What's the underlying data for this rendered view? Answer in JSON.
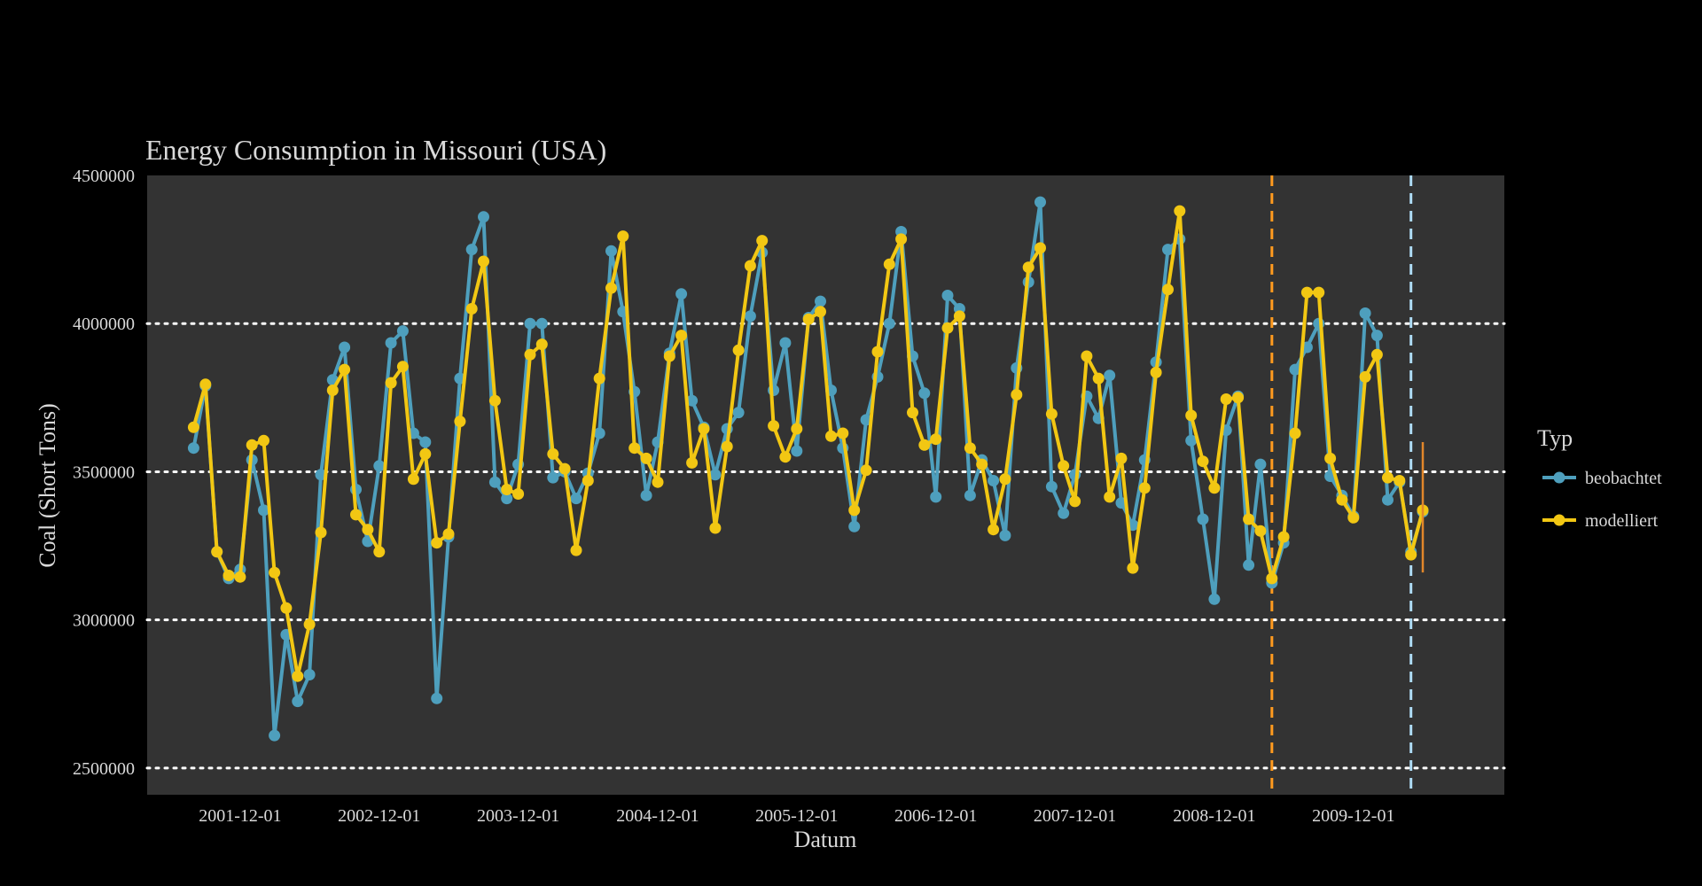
{
  "chart_data": {
    "type": "line",
    "title": "Energy Consumption in Missouri (USA)",
    "xlabel": "Datum",
    "ylabel": "Coal (Short Tons)",
    "ylim": [
      2410000,
      4500000
    ],
    "y_ticks": [
      2500000,
      3000000,
      3500000,
      4000000,
      4500000
    ],
    "x_ticks": [
      "2001-12-01",
      "2002-12-01",
      "2003-12-01",
      "2004-12-01",
      "2005-12-01",
      "2006-12-01",
      "2007-12-01",
      "2008-12-01",
      "2009-12-01"
    ],
    "x_start": "2001-04-01",
    "x_end": "2011-01-01",
    "grid": true,
    "legend": {
      "title": "Typ",
      "position": "right"
    },
    "vlines": [
      {
        "date": "2009-05-01",
        "color": "#ff9a1f",
        "style": "dashed"
      },
      {
        "date": "2010-05-01",
        "color": "#aedcf5",
        "style": "dashed"
      }
    ],
    "error_bar": {
      "date": "2010-06-01",
      "low": 3160000,
      "high": 3600000,
      "color": "#e2872a"
    },
    "first_month": "2001-08-01",
    "series": [
      {
        "name": "beobachtet",
        "color": "#4e9fbd",
        "values": [
          3580000,
          3790000,
          3230000,
          3140000,
          3170000,
          3540000,
          3370000,
          2610000,
          2950000,
          2725000,
          2815000,
          3490000,
          3810000,
          3920000,
          3440000,
          3265000,
          3520000,
          3935000,
          3975000,
          3630000,
          3600000,
          2735000,
          3280000,
          3815000,
          4250000,
          4360000,
          3465000,
          3410000,
          3525000,
          4000000,
          4000000,
          3480000,
          3500000,
          3410000,
          3495000,
          3630000,
          4245000,
          4040000,
          3770000,
          3420000,
          3600000,
          3900000,
          4100000,
          3740000,
          3650000,
          3490000,
          3645000,
          3700000,
          4025000,
          4240000,
          3775000,
          3935000,
          3570000,
          4020000,
          4075000,
          3775000,
          3580000,
          3315000,
          3675000,
          3820000,
          4000000,
          4310000,
          3890000,
          3765000,
          3415000,
          4095000,
          4050000,
          3420000,
          3540000,
          3470000,
          3285000,
          3850000,
          4140000,
          4410000,
          3450000,
          3360000,
          3490000,
          3755000,
          3680000,
          3825000,
          3395000,
          3320000,
          3540000,
          3870000,
          4250000,
          4285000,
          3605000,
          3340000,
          3070000,
          3640000,
          3755000,
          3185000,
          3525000,
          3125000,
          3260000,
          3845000,
          3920000,
          4000000,
          3485000,
          3420000,
          3350000,
          4035000,
          3960000,
          3405000,
          3465000,
          3230000,
          3365000
        ]
      },
      {
        "name": "modelliert",
        "color": "#f2c713",
        "values": [
          3650000,
          3795000,
          3230000,
          3150000,
          3145000,
          3590000,
          3605000,
          3160000,
          3040000,
          2810000,
          2985000,
          3295000,
          3775000,
          3845000,
          3355000,
          3305000,
          3230000,
          3800000,
          3855000,
          3475000,
          3560000,
          3260000,
          3290000,
          3670000,
          4050000,
          4210000,
          3740000,
          3440000,
          3425000,
          3895000,
          3930000,
          3560000,
          3510000,
          3235000,
          3470000,
          3815000,
          4120000,
          4295000,
          3580000,
          3545000,
          3465000,
          3890000,
          3960000,
          3530000,
          3645000,
          3310000,
          3585000,
          3910000,
          4195000,
          4280000,
          3655000,
          3550000,
          3645000,
          4015000,
          4040000,
          3620000,
          3630000,
          3370000,
          3505000,
          3905000,
          4200000,
          4285000,
          3700000,
          3590000,
          3610000,
          3985000,
          4025000,
          3580000,
          3525000,
          3305000,
          3475000,
          3760000,
          4190000,
          4255000,
          3695000,
          3520000,
          3400000,
          3890000,
          3815000,
          3415000,
          3545000,
          3175000,
          3445000,
          3835000,
          4115000,
          4380000,
          3690000,
          3535000,
          3445000,
          3745000,
          3750000,
          3340000,
          3300000,
          3140000,
          3280000,
          3630000,
          4105000,
          4105000,
          3545000,
          3405000,
          3345000,
          3820000,
          3895000,
          3480000,
          3470000,
          3220000,
          3370000
        ]
      }
    ]
  }
}
